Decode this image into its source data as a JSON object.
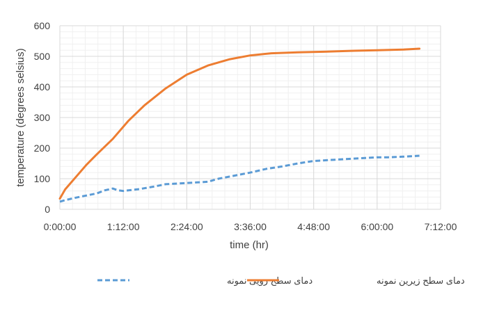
{
  "chart_data": {
    "type": "line",
    "title": "",
    "xlabel": "time (hr)",
    "ylabel": "temperature (degrees selsius)",
    "x_unit": "hours",
    "xlim": [
      0,
      7.2
    ],
    "ylim": [
      0,
      600
    ],
    "x_ticks": [
      "0:00:00",
      "1:12:00",
      "2:24:00",
      "3:36:00",
      "4:48:00",
      "6:00:00",
      "7:12:00"
    ],
    "y_ticks": [
      "0",
      "100",
      "200",
      "300",
      "400",
      "500",
      "600"
    ],
    "grid": true,
    "legend_position": "bottom",
    "series": [
      {
        "name": "دمای سطح رویی نمونه",
        "color": "#5B9BD5",
        "style": "dashed",
        "x": [
          0,
          0.1,
          0.3,
          0.5,
          0.7,
          0.85,
          1.0,
          1.1,
          1.2,
          1.5,
          1.8,
          2.0,
          2.3,
          2.6,
          2.8,
          3.0,
          3.3,
          3.6,
          3.9,
          4.2,
          4.5,
          4.8,
          5.0,
          5.2,
          5.5,
          5.8,
          6.0,
          6.2,
          6.5,
          6.8
        ],
        "y": [
          25,
          30,
          38,
          45,
          52,
          62,
          68,
          62,
          60,
          66,
          75,
          82,
          85,
          88,
          90,
          100,
          110,
          120,
          132,
          140,
          150,
          158,
          160,
          162,
          165,
          168,
          170,
          170,
          172,
          175
        ]
      },
      {
        "name": "دمای سطح زیرین نمونه",
        "color": "#ED7D31",
        "style": "solid",
        "x": [
          0,
          0.1,
          0.3,
          0.5,
          0.7,
          1.0,
          1.3,
          1.6,
          2.0,
          2.4,
          2.8,
          3.2,
          3.6,
          4.0,
          4.5,
          5.0,
          5.5,
          6.0,
          6.5,
          6.8
        ],
        "y": [
          35,
          65,
          105,
          145,
          180,
          230,
          290,
          340,
          395,
          440,
          470,
          490,
          503,
          510,
          513,
          515,
          518,
          520,
          522,
          525
        ]
      }
    ]
  }
}
